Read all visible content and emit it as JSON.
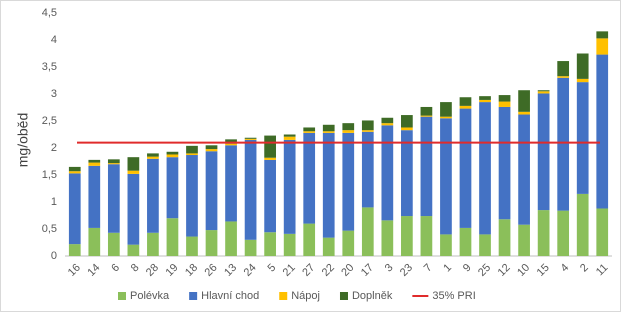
{
  "chart_data": {
    "type": "stacked_bar",
    "y_label": "mg/oběd",
    "categories": [
      "16",
      "14",
      "6",
      "8",
      "28",
      "19",
      "18",
      "26",
      "13",
      "24",
      "5",
      "21",
      "27",
      "22",
      "20",
      "17",
      "3",
      "23",
      "7",
      "1",
      "9",
      "25",
      "12",
      "10",
      "15",
      "4",
      "2",
      "11"
    ],
    "series": [
      {
        "name": "Polévka",
        "color": "#8bbf5a",
        "values": [
          0.22,
          0.52,
          0.43,
          0.21,
          0.43,
          0.7,
          0.36,
          0.48,
          0.64,
          0.3,
          0.44,
          0.41,
          0.6,
          0.34,
          0.47,
          0.9,
          0.66,
          0.74,
          0.74,
          0.4,
          0.52,
          0.4,
          0.68,
          0.58,
          0.85,
          0.84,
          1.15,
          0.88
        ]
      },
      {
        "name": "Hlavní chod",
        "color": "#4472c4",
        "values": [
          1.31,
          1.15,
          1.27,
          1.31,
          1.37,
          1.13,
          1.51,
          1.46,
          1.41,
          1.85,
          1.34,
          1.74,
          1.68,
          1.94,
          1.81,
          1.4,
          1.76,
          1.59,
          1.84,
          2.15,
          2.21,
          2.45,
          2.08,
          2.04,
          2.16,
          2.46,
          2.07,
          2.85
        ]
      },
      {
        "name": "Nápoj",
        "color": "#ffc000",
        "values": [
          0.04,
          0.06,
          0.02,
          0.06,
          0.04,
          0.05,
          0.03,
          0.04,
          0.03,
          0.02,
          0.04,
          0.06,
          0.03,
          0.03,
          0.05,
          0.03,
          0.04,
          0.05,
          0.02,
          0.03,
          0.05,
          0.04,
          0.1,
          0.05,
          0.04,
          0.03,
          0.06,
          0.3
        ]
      },
      {
        "name": "Doplněk",
        "color": "#3e6b26",
        "values": [
          0.08,
          0.05,
          0.07,
          0.25,
          0.06,
          0.05,
          0.14,
          0.07,
          0.08,
          0.02,
          0.41,
          0.04,
          0.07,
          0.12,
          0.13,
          0.18,
          0.1,
          0.23,
          0.16,
          0.27,
          0.16,
          0.07,
          0.12,
          0.4,
          0.02,
          0.28,
          0.47,
          0.13
        ]
      }
    ],
    "reference_line": {
      "name": "35% PRI",
      "value": 2.1,
      "color": "#e02b2b"
    },
    "ylim": [
      0,
      4.5
    ],
    "yticks": [
      0,
      {
        "value": 0.5,
        "label": "0,5"
      },
      1,
      {
        "value": 1.5,
        "label": "1,5"
      },
      2,
      {
        "value": 2.5,
        "label": "2,5"
      },
      3,
      {
        "value": 3.5,
        "label": "3,5"
      },
      4,
      {
        "value": 4.5,
        "label": "4,5"
      }
    ],
    "grid": false
  }
}
